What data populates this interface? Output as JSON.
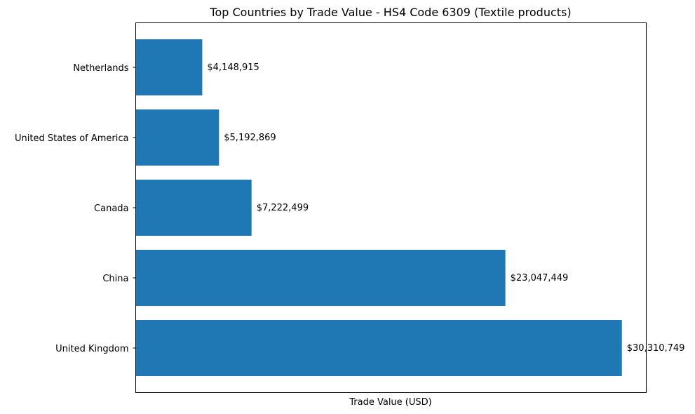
{
  "chart_data": {
    "type": "bar",
    "orientation": "horizontal",
    "title": "Top Countries by Trade Value - HS4 Code 6309 (Textile products)",
    "xlabel": "Trade Value (USD)",
    "ylabel": "",
    "categories": [
      "Netherlands",
      "United States of America",
      "Canada",
      "China",
      "United Kingdom"
    ],
    "values": [
      4148915,
      5192869,
      7222499,
      23047449,
      30310749
    ],
    "data_labels": [
      "$4,148,915",
      "$5,192,869",
      "$7,222,499",
      "$23,047,449",
      "$30,310,749"
    ],
    "xlim": [
      0,
      31830000
    ],
    "bar_color": "#1f77b4",
    "grid": false,
    "x_ticks_visible": false
  }
}
